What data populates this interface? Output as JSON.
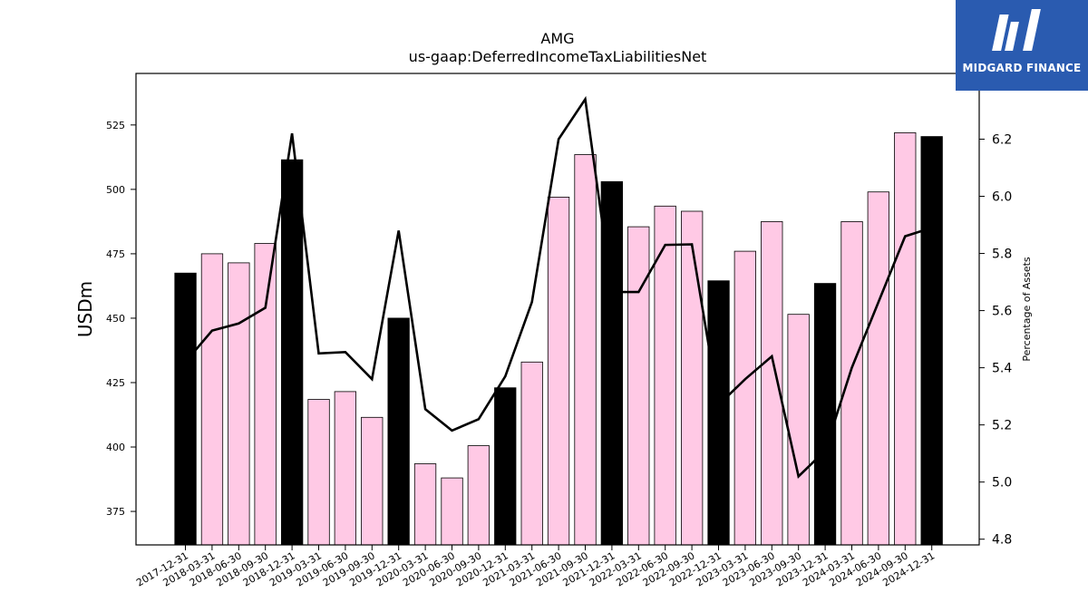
{
  "chart_data": {
    "type": "bar",
    "title": "AMG",
    "subtitle": "us-gaap:DeferredIncomeTaxLiabilitiesNet",
    "ylabel": "USDm",
    "y2label": "Percentage of Assets",
    "ylim": [
      362,
      545
    ],
    "y2lim": [
      4.78,
      6.43
    ],
    "yticks": [
      375,
      400,
      425,
      450,
      475,
      500,
      525
    ],
    "y2ticks": [
      4.8,
      5.0,
      5.2,
      5.4,
      5.6,
      5.8,
      6.0,
      6.2
    ],
    "categories": [
      "2017-12-31",
      "2018-03-31",
      "2018-06-30",
      "2018-09-30",
      "2018-12-31",
      "2019-03-31",
      "2019-06-30",
      "2019-09-30",
      "2019-12-31",
      "2020-03-31",
      "2020-06-30",
      "2020-09-30",
      "2020-12-31",
      "2021-03-31",
      "2021-06-30",
      "2021-09-30",
      "2021-12-31",
      "2022-03-31",
      "2022-06-30",
      "2022-09-30",
      "2022-12-31",
      "2023-03-31",
      "2023-06-30",
      "2023-09-30",
      "2023-12-31",
      "2024-03-31",
      "2024-06-30",
      "2024-09-30",
      "2024-12-31"
    ],
    "series": [
      {
        "kind": "bar",
        "values": [
          467.5,
          475,
          471.5,
          479,
          511.5,
          418.5,
          421.5,
          411.5,
          450,
          393.5,
          388,
          400.5,
          423,
          433,
          497,
          513.5,
          503,
          485.5,
          493.5,
          491.5,
          464.5,
          476,
          487.5,
          451.5,
          463.5,
          487.5,
          499,
          522,
          520.5
        ],
        "year_end": [
          true,
          false,
          false,
          false,
          true,
          false,
          false,
          false,
          true,
          false,
          false,
          false,
          true,
          false,
          false,
          false,
          true,
          false,
          false,
          false,
          true,
          false,
          false,
          false,
          true,
          false,
          false,
          false,
          true
        ]
      },
      {
        "kind": "line",
        "axis": "right",
        "values": [
          5.42,
          5.53,
          5.555,
          5.61,
          6.22,
          5.45,
          5.455,
          5.36,
          5.88,
          5.255,
          5.18,
          5.22,
          5.37,
          5.63,
          6.2,
          6.34,
          5.665,
          5.665,
          5.83,
          5.832,
          5.27,
          5.36,
          5.44,
          5.02,
          5.11,
          5.4,
          5.63,
          5.86,
          5.89
        ]
      }
    ],
    "colors": {
      "year_end_bar": "#000000",
      "quarter_bar": "#ffc9e5",
      "line": "#000000"
    }
  },
  "logo": {
    "text": "MIDGARD FINANCE"
  }
}
